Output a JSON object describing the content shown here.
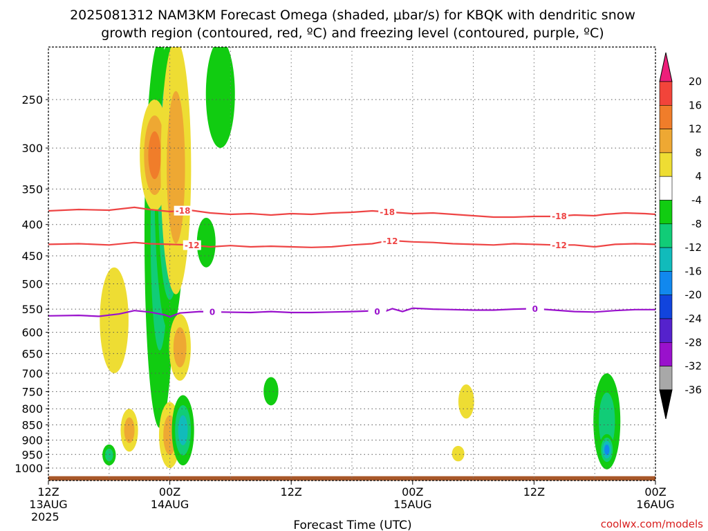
{
  "title": {
    "line1": "2025081312 NAM3KM Forecast Omega (shaded, μbar/s) for KBQK with dendritic snow",
    "line2": "growth region (contoured, red, ºC) and freezing level (contoured, purple, ºC)"
  },
  "credit": "coolwx.com/models",
  "chart_data": {
    "type": "contour",
    "x_axis": {
      "label": "Forecast Time (UTC)",
      "range_hours": [
        0,
        60
      ],
      "ticks": [
        {
          "hour": 0,
          "lines": [
            "12Z",
            "13AUG",
            "2025"
          ]
        },
        {
          "hour": 12,
          "lines": [
            "00Z",
            "14AUG"
          ]
        },
        {
          "hour": 24,
          "lines": [
            "12Z"
          ]
        },
        {
          "hour": 36,
          "lines": [
            "00Z",
            "15AUG"
          ]
        },
        {
          "hour": 48,
          "lines": [
            "12Z"
          ]
        },
        {
          "hour": 60,
          "lines": [
            "00Z",
            "16AUG"
          ]
        }
      ],
      "grid_minor_every_hours": 6
    },
    "y_axis": {
      "label": "",
      "unit": "hPa",
      "range": [
        1030,
        200
      ],
      "ticks": [
        250,
        300,
        350,
        400,
        450,
        500,
        550,
        600,
        650,
        700,
        750,
        800,
        850,
        900,
        950,
        1000
      ]
    },
    "colorbar": {
      "unit": "μbar/s",
      "labels": [
        "20",
        "16",
        "12",
        "8",
        "4",
        "-4",
        "-8",
        "-12",
        "-16",
        "-20",
        "-24",
        "-28",
        "-32",
        "-36"
      ],
      "levels": [
        {
          "range": [
            20,
            999
          ],
          "color": "#ee1e7a"
        },
        {
          "range": [
            16,
            20
          ],
          "color": "#f2443a"
        },
        {
          "range": [
            12,
            16
          ],
          "color": "#f07d2a"
        },
        {
          "range": [
            8,
            12
          ],
          "color": "#eea833"
        },
        {
          "range": [
            4,
            8
          ],
          "color": "#eedd33"
        },
        {
          "range": [
            -4,
            4
          ],
          "color": "#ffffff"
        },
        {
          "range": [
            -8,
            -4
          ],
          "color": "#11cc11"
        },
        {
          "range": [
            -12,
            -8
          ],
          "color": "#11cc77"
        },
        {
          "range": [
            -16,
            -12
          ],
          "color": "#11bbbb"
        },
        {
          "range": [
            -20,
            -16
          ],
          "color": "#1188ee"
        },
        {
          "range": [
            -24,
            -20
          ],
          "color": "#1144dd"
        },
        {
          "range": [
            -28,
            -24
          ],
          "color": "#5522cc"
        },
        {
          "range": [
            -32,
            -28
          ],
          "color": "#9911cc"
        },
        {
          "range": [
            -36,
            -32
          ],
          "color": "#a8a8a8"
        },
        {
          "range": [
            -999,
            -36
          ],
          "color": "#000000"
        }
      ]
    },
    "contours": [
      {
        "name": "-18",
        "color": "#ee4444",
        "labels": [
          {
            "hour": 13.3,
            "text": "-18"
          },
          {
            "hour": 33.5,
            "text": "-18"
          },
          {
            "hour": 50.5,
            "text": "-18"
          }
        ],
        "points": [
          [
            0,
            380
          ],
          [
            3,
            378
          ],
          [
            6,
            379
          ],
          [
            8.5,
            375
          ],
          [
            10,
            378
          ],
          [
            12,
            381
          ],
          [
            14,
            379
          ],
          [
            16,
            383
          ],
          [
            18,
            385
          ],
          [
            20,
            384
          ],
          [
            22,
            386
          ],
          [
            24,
            384
          ],
          [
            26,
            385
          ],
          [
            28,
            383
          ],
          [
            30,
            382
          ],
          [
            32,
            380
          ],
          [
            34,
            382
          ],
          [
            36,
            384
          ],
          [
            38,
            383
          ],
          [
            40,
            385
          ],
          [
            42,
            387
          ],
          [
            44,
            389
          ],
          [
            46,
            389
          ],
          [
            48,
            388
          ],
          [
            50,
            388
          ],
          [
            52,
            386
          ],
          [
            54,
            387
          ],
          [
            55,
            385
          ],
          [
            57,
            383
          ],
          [
            59,
            384
          ],
          [
            60,
            385
          ]
        ]
      },
      {
        "name": "-12",
        "color": "#ee4444",
        "labels": [
          {
            "hour": 14.2,
            "text": "-12"
          },
          {
            "hour": 33.8,
            "text": "-12"
          },
          {
            "hour": 50.5,
            "text": "-12"
          }
        ],
        "points": [
          [
            0,
            431
          ],
          [
            3,
            430
          ],
          [
            6,
            432
          ],
          [
            8.5,
            428
          ],
          [
            10,
            430
          ],
          [
            12,
            431
          ],
          [
            14,
            432
          ],
          [
            16,
            435
          ],
          [
            18,
            433
          ],
          [
            20,
            435
          ],
          [
            22,
            434
          ],
          [
            24,
            435
          ],
          [
            26,
            436
          ],
          [
            28,
            435
          ],
          [
            30,
            432
          ],
          [
            32,
            430
          ],
          [
            33,
            427
          ],
          [
            34,
            425
          ],
          [
            36,
            427
          ],
          [
            38,
            428
          ],
          [
            40,
            430
          ],
          [
            42,
            431
          ],
          [
            44,
            432
          ],
          [
            46,
            430
          ],
          [
            48,
            431
          ],
          [
            50,
            432
          ],
          [
            52,
            432
          ],
          [
            54,
            435
          ],
          [
            56,
            431
          ],
          [
            58,
            430
          ],
          [
            60,
            431
          ]
        ]
      },
      {
        "name": "0",
        "color": "#9911cc",
        "labels": [
          {
            "hour": 16.2,
            "text": "0"
          },
          {
            "hour": 32.5,
            "text": "0"
          },
          {
            "hour": 48.1,
            "text": "0"
          }
        ],
        "points": [
          [
            0,
            564
          ],
          [
            3,
            563
          ],
          [
            5,
            565
          ],
          [
            7,
            560
          ],
          [
            8.5,
            553
          ],
          [
            10,
            556
          ],
          [
            11.5,
            562
          ],
          [
            12,
            566
          ],
          [
            13,
            558
          ],
          [
            15,
            555
          ],
          [
            17,
            556
          ],
          [
            20,
            557
          ],
          [
            22,
            555
          ],
          [
            24,
            557
          ],
          [
            26,
            557
          ],
          [
            28,
            556
          ],
          [
            30,
            555
          ],
          [
            31.5,
            554
          ],
          [
            32,
            552
          ],
          [
            33,
            557
          ],
          [
            34,
            549
          ],
          [
            35,
            555
          ],
          [
            36,
            548
          ],
          [
            38,
            550
          ],
          [
            40,
            551
          ],
          [
            42,
            552
          ],
          [
            44,
            552
          ],
          [
            46,
            550
          ],
          [
            48,
            549
          ],
          [
            50,
            552
          ],
          [
            52,
            555
          ],
          [
            54,
            556
          ],
          [
            56,
            553
          ],
          [
            58,
            551
          ],
          [
            60,
            551
          ]
        ]
      }
    ],
    "shaded_regions_values": [
      {
        "hour": 6.5,
        "p_top": 470,
        "p_bottom": 700,
        "value": 5
      },
      {
        "hour": 11.0,
        "p_top": 200,
        "p_bottom": 860,
        "value": -10
      },
      {
        "hour": 12.0,
        "p_top": 200,
        "p_bottom": 600,
        "value": -20
      },
      {
        "hour": 10.5,
        "p_top": 250,
        "p_bottom": 380,
        "value": 14
      },
      {
        "hour": 12.6,
        "p_top": 200,
        "p_bottom": 520,
        "value": 12
      },
      {
        "hour": 13.0,
        "p_top": 560,
        "p_bottom": 720,
        "value": 12
      },
      {
        "hour": 12.0,
        "p_top": 780,
        "p_bottom": 1000,
        "value": 9
      },
      {
        "hour": 13.3,
        "p_top": 760,
        "p_bottom": 990,
        "value": -13
      },
      {
        "hour": 8.0,
        "p_top": 800,
        "p_bottom": 940,
        "value": 9
      },
      {
        "hour": 6.0,
        "p_top": 915,
        "p_bottom": 990,
        "value": -10
      },
      {
        "hour": 17.0,
        "p_top": 200,
        "p_bottom": 300,
        "value": -5
      },
      {
        "hour": 15.6,
        "p_top": 390,
        "p_bottom": 470,
        "value": -5
      },
      {
        "hour": 22.0,
        "p_top": 710,
        "p_bottom": 790,
        "value": -5
      },
      {
        "hour": 41.3,
        "p_top": 730,
        "p_bottom": 830,
        "value": 5
      },
      {
        "hour": 40.5,
        "p_top": 920,
        "p_bottom": 975,
        "value": 5
      },
      {
        "hour": 55.2,
        "p_top": 700,
        "p_bottom": 1005,
        "value": -10
      },
      {
        "hour": 55.2,
        "p_top": 880,
        "p_bottom": 990,
        "value": -17
      }
    ],
    "terrain": {
      "surface_pressure": 1015,
      "color": "#a8582a"
    }
  }
}
